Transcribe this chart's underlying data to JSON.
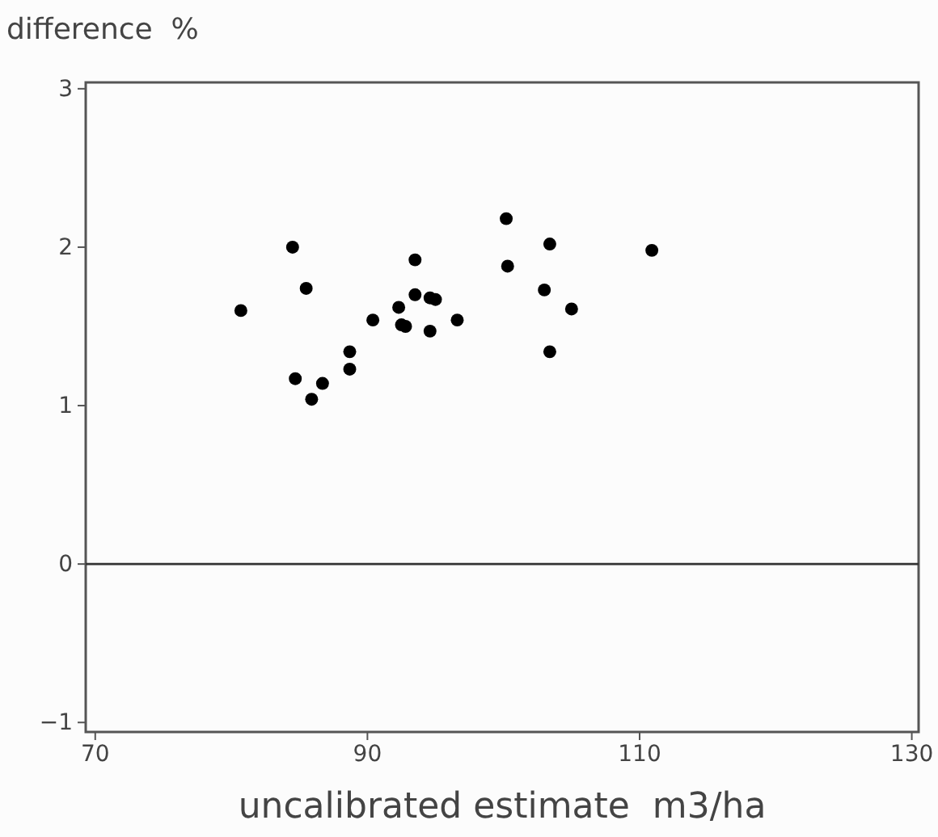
{
  "chart_data": {
    "type": "scatter",
    "xlabel": "uncalibrated estimate  m3/ha",
    "ylabel": "difference  %",
    "x": [
      80.7,
      84.5,
      85.5,
      84.7,
      85.9,
      86.7,
      88.7,
      88.7,
      90.4,
      92.3,
      92.5,
      92.8,
      93.5,
      93.5,
      94.6,
      95.0,
      94.6,
      96.6,
      100.2,
      103.4,
      100.3,
      103.0,
      105.0,
      103.4,
      110.9
    ],
    "values": [
      1.6,
      2.0,
      1.74,
      1.17,
      1.04,
      1.14,
      1.34,
      1.23,
      1.54,
      1.62,
      1.51,
      1.5,
      1.92,
      1.7,
      1.68,
      1.67,
      1.47,
      1.54,
      2.18,
      2.02,
      1.88,
      1.73,
      1.61,
      1.34,
      1.98
    ],
    "color": "#000000",
    "marker": "circle",
    "xlim": [
      69.3,
      130.5
    ],
    "xticks": [
      70,
      90,
      110,
      130
    ],
    "ylim": [
      -1.06,
      3.04
    ],
    "yticks": [
      -1,
      0,
      1,
      2,
      3
    ],
    "ref_lines": [
      {
        "axis": "y",
        "value": 0,
        "color": "#333333"
      }
    ],
    "grid": false
  }
}
